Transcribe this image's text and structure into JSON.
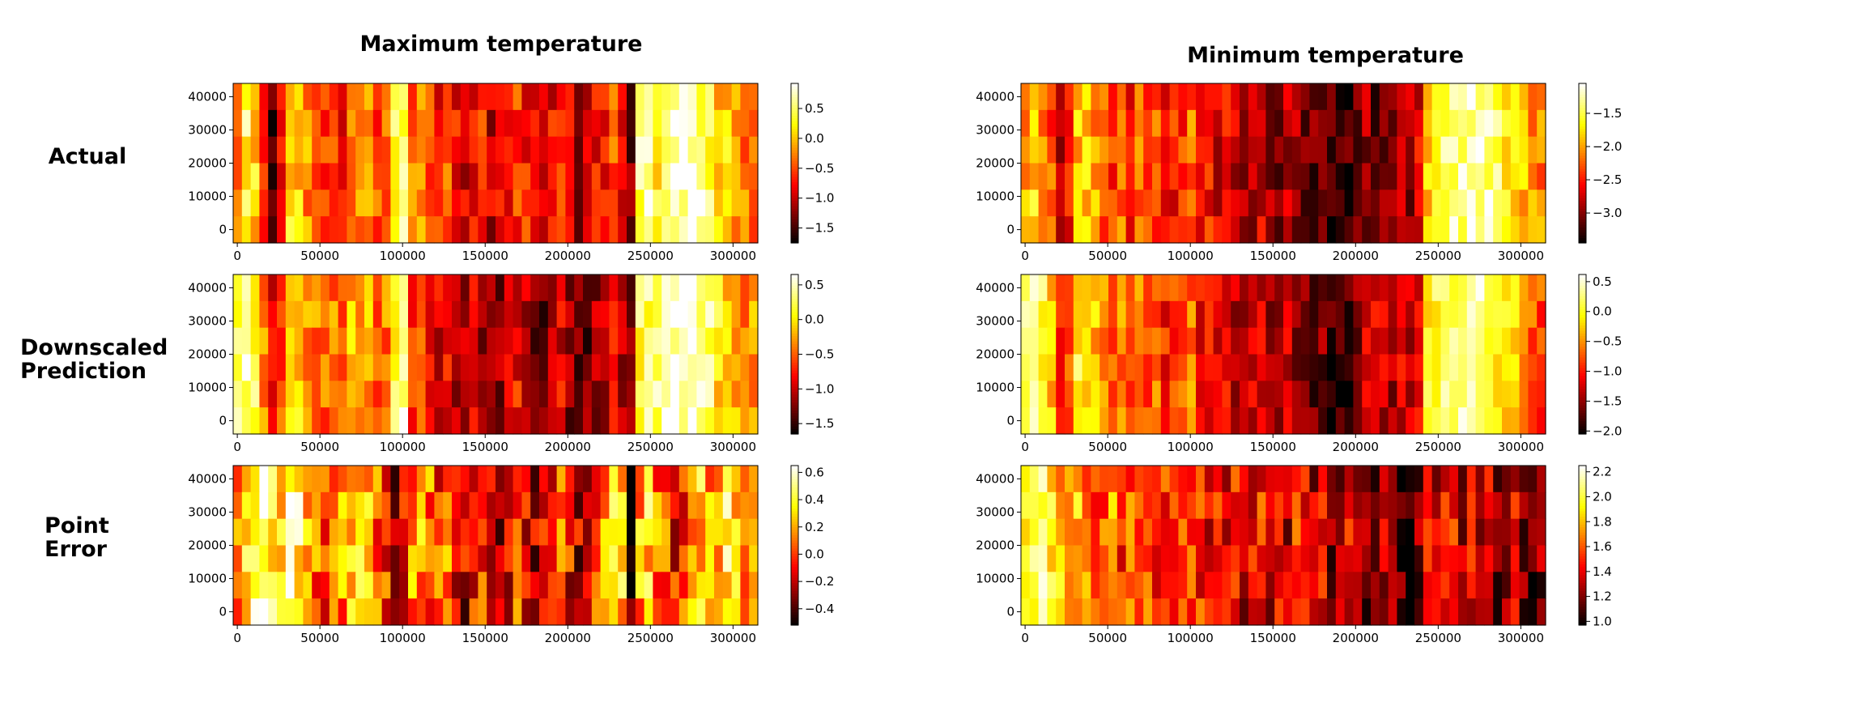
{
  "figure": {
    "column_titles": [
      "Maximum temperature",
      "Minimum temperature"
    ],
    "row_labels": [
      [
        "Actual"
      ],
      [
        "Downscaled",
        "Prediction"
      ],
      [
        "Point",
        "Error"
      ]
    ]
  },
  "chart_data": [
    {
      "type": "heatmap",
      "panel": "Maximum temperature — Actual",
      "colormap": "hot",
      "xlim": [
        -2500,
        315000
      ],
      "ylim": [
        -4000,
        44000
      ],
      "x_ticks": [
        0,
        50000,
        100000,
        150000,
        200000,
        250000,
        300000
      ],
      "y_ticks": [
        0,
        10000,
        20000,
        30000,
        40000
      ],
      "colorbar": {
        "vmin": -1.75,
        "vmax": 0.92,
        "ticks": [
          0.5,
          0.0,
          -0.5,
          -1.0,
          -1.5
        ],
        "tick_labels": [
          "0.5",
          "0.0",
          "−0.5",
          "−1.0",
          "−1.5"
        ]
      },
      "n_cols": 60,
      "n_rows": 6,
      "column_profile": [
        -0.2,
        0.4,
        0.1,
        -0.5,
        -1.4,
        -0.9,
        0.2,
        0.0,
        -0.2,
        -0.4,
        -0.6,
        -0.5,
        -0.8,
        -0.2,
        -0.3,
        -0.1,
        -0.5,
        -0.3,
        0.3,
        0.6,
        -0.4,
        -0.2,
        -0.5,
        -0.7,
        -0.4,
        -0.8,
        -0.9,
        -0.7,
        -0.6,
        -1.0,
        -0.9,
        -0.8,
        -0.6,
        -0.7,
        -0.9,
        -1.0,
        -0.8,
        -0.6,
        -0.9,
        -1.1,
        -1.0,
        -0.8,
        -0.7,
        -0.5,
        -0.9,
        -1.3,
        0.5,
        0.6,
        0.3,
        0.5,
        0.7,
        0.8,
        0.8,
        0.6,
        0.4,
        0.0,
        0.1,
        -0.1,
        -0.3,
        -0.4
      ],
      "noise_amplitude": 0.35,
      "seed": 11
    },
    {
      "type": "heatmap",
      "panel": "Minimum temperature — Actual",
      "colormap": "hot",
      "xlim": [
        -2500,
        315000
      ],
      "ylim": [
        -4000,
        44000
      ],
      "x_ticks": [
        0,
        50000,
        100000,
        150000,
        200000,
        250000,
        300000
      ],
      "y_ticks": [
        0,
        10000,
        20000,
        30000,
        40000
      ],
      "colorbar": {
        "vmin": -3.45,
        "vmax": -1.05,
        "ticks": [
          -1.5,
          -2.0,
          -2.5,
          -3.0
        ],
        "tick_labels": [
          "−1.5",
          "−2.0",
          "−2.5",
          "−3.0"
        ]
      },
      "n_cols": 60,
      "n_rows": 6,
      "column_profile": [
        -2.0,
        -1.8,
        -2.1,
        -2.3,
        -3.0,
        -2.6,
        -1.9,
        -1.8,
        -2.0,
        -2.3,
        -2.4,
        -2.2,
        -2.5,
        -2.2,
        -2.4,
        -2.3,
        -2.6,
        -2.5,
        -2.4,
        -2.2,
        -2.6,
        -2.5,
        -2.7,
        -2.6,
        -2.8,
        -2.9,
        -2.8,
        -2.7,
        -2.9,
        -3.0,
        -2.8,
        -2.9,
        -3.0,
        -3.1,
        -3.0,
        -3.2,
        -3.3,
        -3.2,
        -3.0,
        -2.9,
        -3.1,
        -3.0,
        -2.9,
        -2.8,
        -2.9,
        -2.7,
        -1.8,
        -1.6,
        -1.4,
        -1.3,
        -1.3,
        -1.2,
        -1.2,
        -1.3,
        -1.5,
        -1.6,
        -1.7,
        -1.9,
        -2.0,
        -2.1
      ],
      "noise_amplitude": 0.3,
      "seed": 23
    },
    {
      "type": "heatmap",
      "panel": "Maximum temperature — Downscaled Prediction",
      "colormap": "hot",
      "xlim": [
        -2500,
        315000
      ],
      "ylim": [
        -4000,
        44000
      ],
      "x_ticks": [
        0,
        50000,
        100000,
        150000,
        200000,
        250000,
        300000
      ],
      "y_ticks": [
        0,
        10000,
        20000,
        30000,
        40000
      ],
      "colorbar": {
        "vmin": -1.65,
        "vmax": 0.65,
        "ticks": [
          0.5,
          0.0,
          -0.5,
          -1.0,
          -1.5
        ],
        "tick_labels": [
          "0.5",
          "0.0",
          "−0.5",
          "−1.0",
          "−1.5"
        ]
      },
      "n_cols": 60,
      "n_rows": 6,
      "column_profile": [
        0.3,
        0.4,
        0.2,
        -0.3,
        -0.8,
        -0.6,
        0.0,
        -0.1,
        -0.3,
        -0.4,
        -0.5,
        -0.4,
        -0.6,
        -0.2,
        -0.3,
        -0.2,
        -0.5,
        -0.4,
        0.2,
        0.4,
        -0.6,
        -0.5,
        -0.7,
        -0.9,
        -0.8,
        -1.0,
        -1.1,
        -1.0,
        -1.1,
        -1.3,
        -1.2,
        -1.0,
        -0.8,
        -1.0,
        -1.2,
        -1.3,
        -1.1,
        -0.9,
        -1.2,
        -1.4,
        -1.3,
        -1.1,
        -1.0,
        -0.8,
        -1.1,
        -1.2,
        0.2,
        0.3,
        0.3,
        0.5,
        0.6,
        0.6,
        0.6,
        0.4,
        0.3,
        0.0,
        -0.1,
        -0.2,
        -0.5,
        -0.3
      ],
      "noise_amplitude": 0.3,
      "seed": 37
    },
    {
      "type": "heatmap",
      "panel": "Minimum temperature — Downscaled Prediction",
      "colormap": "hot",
      "xlim": [
        -2500,
        315000
      ],
      "ylim": [
        -4000,
        44000
      ],
      "x_ticks": [
        0,
        50000,
        100000,
        150000,
        200000,
        250000,
        300000
      ],
      "y_ticks": [
        0,
        10000,
        20000,
        30000,
        40000
      ],
      "colorbar": {
        "vmin": -2.05,
        "vmax": 0.62,
        "ticks": [
          0.5,
          0.0,
          -0.5,
          -1.0,
          -1.5,
          -2.0
        ],
        "tick_labels": [
          "0.5",
          "0.0",
          "−0.5",
          "−1.0",
          "−1.5",
          "−2.0"
        ]
      },
      "n_cols": 60,
      "n_rows": 6,
      "column_profile": [
        0.3,
        0.2,
        0.1,
        -0.3,
        -1.0,
        -0.7,
        0.0,
        -0.1,
        -0.3,
        -0.6,
        -0.8,
        -0.6,
        -0.9,
        -0.6,
        -0.8,
        -0.7,
        -1.0,
        -0.9,
        -0.8,
        -0.6,
        -1.1,
        -1.0,
        -1.2,
        -1.1,
        -1.3,
        -1.4,
        -1.3,
        -1.2,
        -1.4,
        -1.5,
        -1.3,
        -1.5,
        -1.6,
        -1.7,
        -1.6,
        -1.8,
        -1.9,
        -1.8,
        -1.5,
        -1.3,
        -1.2,
        -1.3,
        -1.4,
        -1.2,
        -1.3,
        -1.1,
        -0.1,
        0.1,
        0.3,
        0.3,
        0.4,
        0.4,
        0.3,
        0.1,
        0.0,
        -0.2,
        -0.3,
        -0.5,
        -0.7,
        -0.8
      ],
      "noise_amplitude": 0.32,
      "seed": 41
    },
    {
      "type": "heatmap",
      "panel": "Maximum temperature — Point Error",
      "colormap": "hot",
      "xlim": [
        -2500,
        315000
      ],
      "ylim": [
        -4000,
        44000
      ],
      "x_ticks": [
        0,
        50000,
        100000,
        150000,
        200000,
        250000,
        300000
      ],
      "y_ticks": [
        0,
        10000,
        20000,
        30000,
        40000
      ],
      "colorbar": {
        "vmin": -0.52,
        "vmax": 0.65,
        "ticks": [
          0.6,
          0.4,
          0.2,
          0.0,
          -0.2,
          -0.4
        ],
        "tick_labels": [
          "0.6",
          "0.4",
          "0.2",
          "0.0",
          "−0.2",
          "−0.4"
        ]
      },
      "n_cols": 60,
      "n_rows": 6,
      "column_profile": [
        0.1,
        0.4,
        0.5,
        0.6,
        0.4,
        0.3,
        0.5,
        0.4,
        0.2,
        0.1,
        0.0,
        0.2,
        0.1,
        0.2,
        0.3,
        0.2,
        0.1,
        0.0,
        -0.3,
        -0.1,
        0.1,
        0.2,
        0.1,
        0.0,
        0.1,
        -0.1,
        -0.2,
        -0.1,
        0.0,
        -0.2,
        -0.3,
        -0.1,
        0.0,
        -0.1,
        -0.2,
        -0.1,
        0.0,
        0.1,
        -0.1,
        -0.2,
        -0.1,
        0.0,
        0.1,
        0.5,
        0.3,
        -0.4,
        0.2,
        0.3,
        0.1,
        0.0,
        -0.1,
        0.0,
        0.2,
        0.3,
        0.2,
        0.1,
        0.4,
        0.3,
        0.2,
        0.1
      ],
      "noise_amplitude": 0.25,
      "seed": 53
    },
    {
      "type": "heatmap",
      "panel": "Minimum temperature — Point Error",
      "colormap": "hot",
      "xlim": [
        -2500,
        315000
      ],
      "ylim": [
        -4000,
        44000
      ],
      "x_ticks": [
        0,
        50000,
        100000,
        150000,
        200000,
        250000,
        300000
      ],
      "y_ticks": [
        0,
        10000,
        20000,
        30000,
        40000
      ],
      "colorbar": {
        "vmin": 0.97,
        "vmax": 2.25,
        "ticks": [
          2.2,
          2.0,
          1.8,
          1.6,
          1.4,
          1.2,
          1.0
        ],
        "tick_labels": [
          "2.2",
          "2.0",
          "1.8",
          "1.6",
          "1.4",
          "1.2",
          "1.0"
        ]
      },
      "n_cols": 60,
      "n_rows": 6,
      "column_profile": [
        2.0,
        2.1,
        2.1,
        1.9,
        1.8,
        1.7,
        1.8,
        1.7,
        1.6,
        1.6,
        1.7,
        1.5,
        1.6,
        1.5,
        1.6,
        1.4,
        1.5,
        1.6,
        1.5,
        1.6,
        1.5,
        1.4,
        1.5,
        1.4,
        1.5,
        1.3,
        1.4,
        1.5,
        1.3,
        1.4,
        1.3,
        1.5,
        1.4,
        1.3,
        1.4,
        1.2,
        1.3,
        1.4,
        1.3,
        1.2,
        1.1,
        1.3,
        1.4,
        1.1,
        1.0,
        1.2,
        1.4,
        1.3,
        1.4,
        1.5,
        1.3,
        1.4,
        1.3,
        1.4,
        1.2,
        1.3,
        1.4,
        1.2,
        1.1,
        1.2
      ],
      "noise_amplitude": 0.2,
      "seed": 67
    }
  ]
}
